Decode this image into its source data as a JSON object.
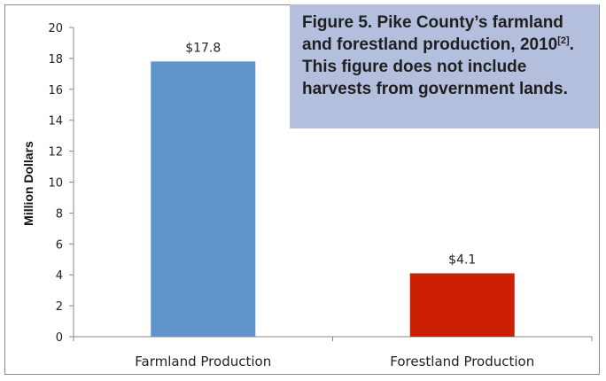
{
  "caption": {
    "main": "Figure 5. Pike County’s farmland and forestland production, 2010",
    "ref": "[2]",
    "rest": ". This figure does not include harvests from government lands."
  },
  "chart_data": {
    "type": "bar",
    "categories": [
      "Farmland Production",
      "Forestland Production"
    ],
    "values": [
      17.8,
      4.1
    ],
    "data_labels": [
      "$17.8",
      "$4.1"
    ],
    "bar_colors": [
      "#6095cc",
      "#cc1f05"
    ],
    "ylabel": "Million Dollars",
    "xlabel": "",
    "ylim": [
      0,
      20
    ],
    "yticks": [
      0,
      2,
      4,
      6,
      8,
      10,
      12,
      14,
      16,
      18,
      20
    ],
    "grid": false,
    "legend": "none"
  }
}
